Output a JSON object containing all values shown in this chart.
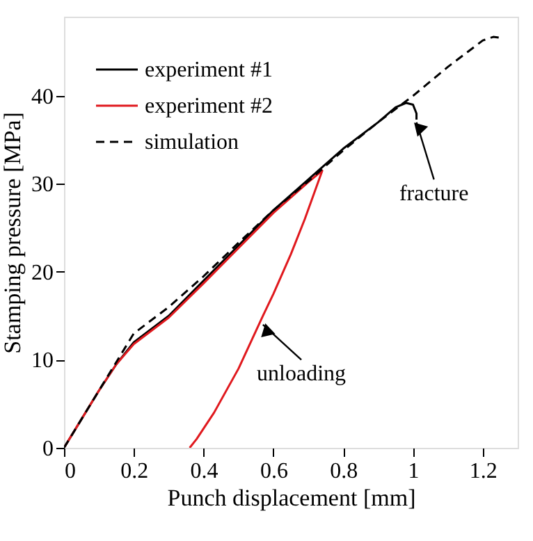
{
  "chart_data": {
    "type": "line",
    "xlabel": "Punch displacement [mm]",
    "ylabel": "Stamping pressure [MPa]",
    "xlim": [
      0,
      1.3
    ],
    "ylim": [
      0,
      49
    ],
    "xticks": [
      0,
      0.2,
      0.4,
      0.6,
      0.8,
      1,
      1.2
    ],
    "yticks": [
      0,
      10,
      20,
      30,
      40
    ],
    "grid": false,
    "legend": "top left",
    "marker": "none",
    "series": [
      {
        "name": "experiment #1",
        "color": "#000000",
        "line_style": "solid",
        "x": [
          0,
          0.1,
          0.15,
          0.2,
          0.3,
          0.4,
          0.5,
          0.6,
          0.7,
          0.8,
          0.9,
          0.95,
          0.98,
          1.0,
          1.01,
          1.01
        ],
        "values": [
          0,
          6.5,
          9.5,
          12,
          15,
          19,
          23,
          27,
          30.5,
          34,
          37,
          38.7,
          39.2,
          39,
          38,
          37.3
        ]
      },
      {
        "name": "experiment #2",
        "color": "#e0191e",
        "line_style": "solid",
        "x": [
          0,
          0.1,
          0.15,
          0.2,
          0.3,
          0.4,
          0.5,
          0.6,
          0.7,
          0.74,
          0.69,
          0.65,
          0.6,
          0.57,
          0.5,
          0.43,
          0.38,
          0.36
        ],
        "values": [
          0,
          6.5,
          9.5,
          11.8,
          14.8,
          18.7,
          22.7,
          26.7,
          30.2,
          31.5,
          26,
          22,
          17.5,
          15,
          9,
          4,
          1,
          0
        ]
      },
      {
        "name": "simulation",
        "color": "#000000",
        "line_style": "dashed",
        "x": [
          0,
          0.1,
          0.2,
          0.3,
          0.4,
          0.5,
          0.6,
          0.7,
          0.8,
          0.9,
          1.0,
          1.1,
          1.2,
          1.23,
          1.25
        ],
        "values": [
          0,
          6.5,
          13,
          16,
          19.5,
          23.3,
          27,
          30.3,
          33.8,
          37,
          40,
          43.3,
          46.3,
          46.7,
          46.6
        ]
      }
    ],
    "annotations": [
      {
        "text": "fracture",
        "x": 1.01,
        "y": 37
      },
      {
        "text": "unloading",
        "x": 0.57,
        "y": 14
      }
    ]
  }
}
